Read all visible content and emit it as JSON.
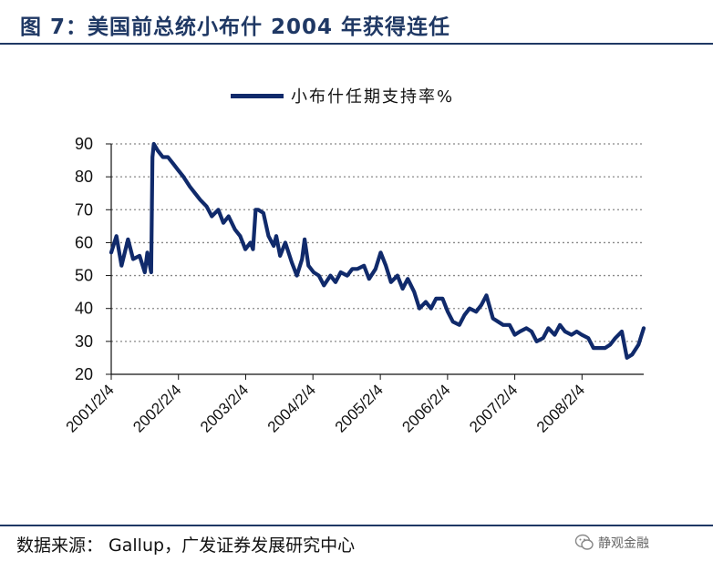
{
  "figure": {
    "title": "图 7：美国前总统小布什 2004 年获得连任",
    "source": "数据来源：  Gallup，广发证券发展研究中心",
    "watermark": "静观金融"
  },
  "colors": {
    "series": "#102a6b",
    "header": "#1f3864",
    "grid": "#888888"
  },
  "chart_data": {
    "type": "line",
    "title": "",
    "xlabel": "",
    "ylabel": "",
    "ylim": [
      20,
      90
    ],
    "yticks": [
      20,
      30,
      40,
      50,
      60,
      70,
      80,
      90
    ],
    "xticks": [
      "2001/2/4",
      "2002/2/4",
      "2003/2/4",
      "2004/2/4",
      "2005/2/4",
      "2006/2/4",
      "2007/2/4",
      "2008/2/4"
    ],
    "xlim": [
      "2001-02-04",
      "2009-01-04"
    ],
    "grid": "horizontal dotted",
    "legend": "top-center",
    "series": [
      {
        "name": "小布什任期支持率%",
        "x": [
          "2001-02-04",
          "2001-03-04",
          "2001-04-01",
          "2001-05-06",
          "2001-06-03",
          "2001-07-08",
          "2001-08-05",
          "2001-08-19",
          "2001-09-09",
          "2001-09-16",
          "2001-09-23",
          "2001-10-14",
          "2001-11-11",
          "2001-12-09",
          "2002-01-06",
          "2002-02-03",
          "2002-03-03",
          "2002-04-07",
          "2002-05-05",
          "2002-06-02",
          "2002-07-07",
          "2002-08-04",
          "2002-09-08",
          "2002-10-06",
          "2002-11-03",
          "2002-12-08",
          "2003-01-05",
          "2003-02-02",
          "2003-03-02",
          "2003-03-16",
          "2003-03-30",
          "2003-04-13",
          "2003-05-11",
          "2003-06-08",
          "2003-07-06",
          "2003-07-20",
          "2003-08-10",
          "2003-09-07",
          "2003-10-12",
          "2003-11-09",
          "2003-12-07",
          "2003-12-21",
          "2004-01-11",
          "2004-02-08",
          "2004-03-07",
          "2004-04-04",
          "2004-05-09",
          "2004-06-06",
          "2004-07-04",
          "2004-08-08",
          "2004-09-05",
          "2004-10-03",
          "2004-11-07",
          "2004-12-05",
          "2005-01-09",
          "2005-02-06",
          "2005-03-06",
          "2005-04-03",
          "2005-05-08",
          "2005-06-05",
          "2005-07-03",
          "2005-08-07",
          "2005-09-04",
          "2005-10-09",
          "2005-11-06",
          "2005-12-04",
          "2006-01-08",
          "2006-02-05",
          "2006-03-05",
          "2006-04-09",
          "2006-05-07",
          "2006-06-04",
          "2006-07-09",
          "2006-08-06",
          "2006-09-03",
          "2006-10-08",
          "2006-11-05",
          "2006-12-03",
          "2007-01-07",
          "2007-02-04",
          "2007-03-04",
          "2007-04-08",
          "2007-05-06",
          "2007-06-03",
          "2007-07-08",
          "2007-08-05",
          "2007-09-09",
          "2007-10-07",
          "2007-11-04",
          "2007-12-09",
          "2008-01-06",
          "2008-02-03",
          "2008-03-09",
          "2008-04-06",
          "2008-05-04",
          "2008-06-08",
          "2008-07-06",
          "2008-08-03",
          "2008-09-07",
          "2008-10-05",
          "2008-11-02",
          "2008-12-07",
          "2009-01-04"
        ],
        "values": [
          57,
          62,
          53,
          61,
          55,
          56,
          51,
          57,
          51,
          86,
          90,
          88,
          86,
          86,
          84,
          82,
          80,
          77,
          75,
          73,
          71,
          68,
          70,
          66,
          68,
          64,
          62,
          58,
          60,
          58,
          70,
          70,
          69,
          62,
          59,
          62,
          56,
          60,
          54,
          50,
          55,
          61,
          53,
          51,
          50,
          47,
          50,
          48,
          51,
          50,
          52,
          52,
          53,
          49,
          52,
          57,
          53,
          48,
          50,
          46,
          49,
          45,
          40,
          42,
          40,
          43,
          43,
          39,
          36,
          35,
          38,
          40,
          39,
          41,
          44,
          37,
          36,
          35,
          35,
          32,
          33,
          34,
          33,
          30,
          31,
          34,
          32,
          35,
          33,
          32,
          33,
          32,
          31,
          28,
          28,
          28,
          29,
          31,
          33,
          25,
          26,
          29,
          34
        ]
      }
    ]
  }
}
